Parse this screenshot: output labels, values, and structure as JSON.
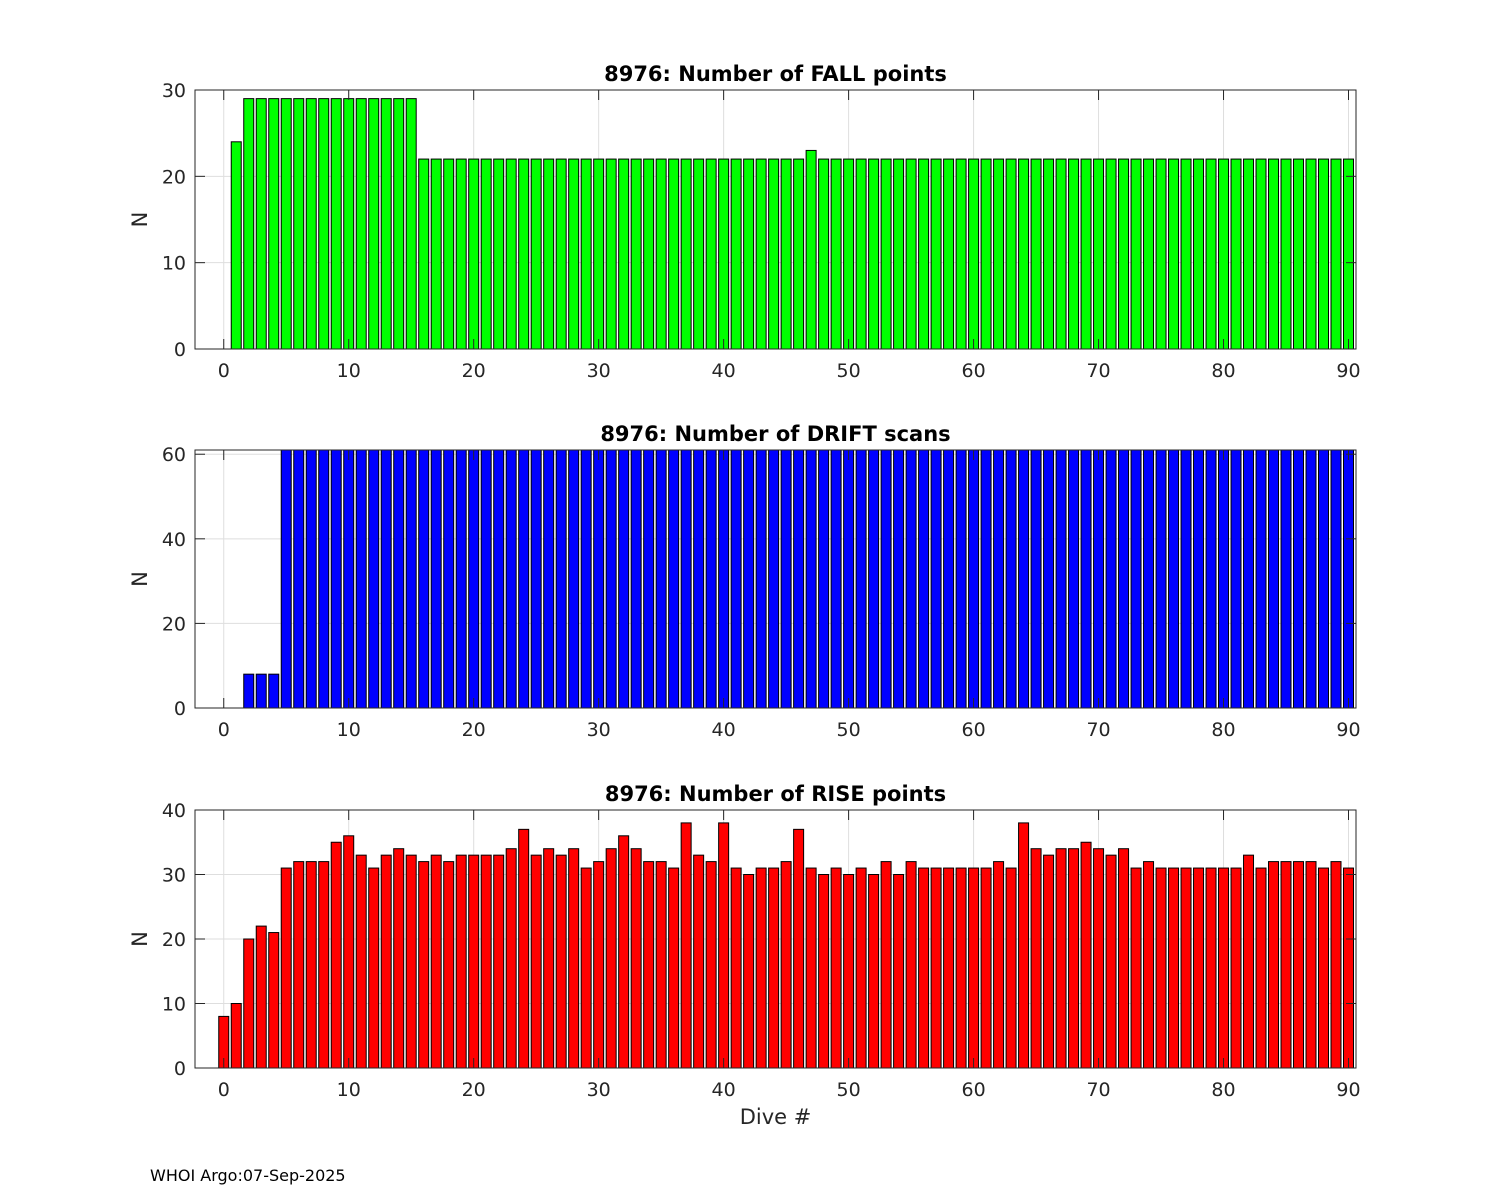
{
  "chart_data": [
    {
      "type": "bar",
      "title": "8976: Number of FALL points",
      "xlabel": "",
      "ylabel": "N",
      "xlim": [
        -2.3,
        90.6
      ],
      "ylim": [
        0,
        30
      ],
      "xticks": [
        0,
        10,
        20,
        30,
        40,
        50,
        60,
        70,
        80,
        90
      ],
      "yticks": [
        0,
        10,
        20,
        30
      ],
      "color": "#00ff00",
      "grid": true,
      "x_start": 0,
      "values": [
        0,
        24,
        29,
        29,
        29,
        29,
        29,
        29,
        29,
        29,
        29,
        29,
        29,
        29,
        29,
        29,
        22,
        22,
        22,
        22,
        22,
        22,
        22,
        22,
        22,
        22,
        22,
        22,
        22,
        22,
        22,
        22,
        22,
        22,
        22,
        22,
        22,
        22,
        22,
        22,
        22,
        22,
        22,
        22,
        22,
        22,
        22,
        23,
        22,
        22,
        22,
        22,
        22,
        22,
        22,
        22,
        22,
        22,
        22,
        22,
        22,
        22,
        22,
        22,
        22,
        22,
        22,
        22,
        22,
        22,
        22,
        22,
        22,
        22,
        22,
        22,
        22,
        22,
        22,
        22,
        22,
        22,
        22,
        22,
        22,
        22,
        22,
        22,
        22,
        22,
        22
      ]
    },
    {
      "type": "bar",
      "title": "8976: Number of DRIFT scans",
      "xlabel": "",
      "ylabel": "N",
      "xlim": [
        -2.3,
        90.6
      ],
      "ylim": [
        0,
        61
      ],
      "xticks": [
        0,
        10,
        20,
        30,
        40,
        50,
        60,
        70,
        80,
        90
      ],
      "yticks": [
        0,
        20,
        40,
        60
      ],
      "color": "#0000ff",
      "grid": true,
      "x_start": -1,
      "values": [
        0,
        0,
        0,
        8,
        8,
        8,
        61,
        61,
        61,
        61,
        61,
        61,
        61,
        61,
        61,
        61,
        61,
        61,
        61,
        61,
        61,
        61,
        61,
        61,
        61,
        61,
        61,
        61,
        61,
        61,
        61,
        61,
        61,
        61,
        61,
        61,
        61,
        61,
        61,
        61,
        61,
        61,
        61,
        61,
        61,
        61,
        61,
        61,
        61,
        61,
        61,
        61,
        61,
        61,
        61,
        61,
        61,
        61,
        61,
        61,
        61,
        61,
        61,
        61,
        61,
        61,
        61,
        61,
        61,
        61,
        61,
        61,
        61,
        61,
        61,
        61,
        61,
        61,
        61,
        61,
        61,
        61,
        61,
        61,
        61,
        61,
        61,
        61,
        61,
        61,
        61,
        61
      ]
    },
    {
      "type": "bar",
      "title": "8976: Number of RISE points",
      "xlabel": "Dive #",
      "ylabel": "N",
      "xlim": [
        -2.3,
        90.6
      ],
      "ylim": [
        0,
        40
      ],
      "xticks": [
        0,
        10,
        20,
        30,
        40,
        50,
        60,
        70,
        80,
        90
      ],
      "yticks": [
        0,
        10,
        20,
        30,
        40
      ],
      "color": "#ff0000",
      "grid": true,
      "x_start": 0,
      "values": [
        8,
        10,
        20,
        22,
        21,
        31,
        32,
        32,
        32,
        35,
        36,
        33,
        31,
        33,
        34,
        33,
        32,
        33,
        32,
        33,
        33,
        33,
        33,
        34,
        37,
        33,
        34,
        33,
        34,
        31,
        32,
        34,
        36,
        34,
        32,
        32,
        31,
        38,
        33,
        32,
        38,
        31,
        30,
        31,
        31,
        32,
        37,
        31,
        30,
        31,
        30,
        31,
        30,
        32,
        30,
        32,
        31,
        31,
        31,
        31,
        31,
        31,
        32,
        31,
        38,
        34,
        33,
        34,
        34,
        35,
        34,
        33,
        34,
        31,
        32,
        31,
        31,
        31,
        31,
        31,
        31,
        31,
        33,
        31,
        32,
        32,
        32,
        32,
        31,
        32,
        31
      ]
    }
  ],
  "footer": "WHOI Argo:07-Sep-2025"
}
